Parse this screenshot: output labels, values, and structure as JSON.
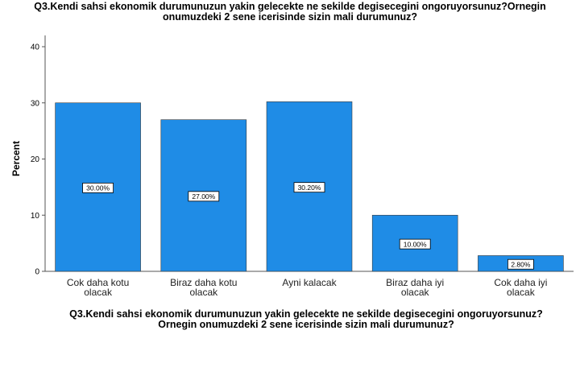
{
  "chart_data": {
    "type": "bar",
    "title_lines": [
      "Q3.Kendi sahsi ekonomik durumunuzun yakin gelecekte ne sekilde degisecegini ongoruyorsunuz?Ornegin",
      "onumuzdeki 2 sene icerisinde sizin mali durumunuz?"
    ],
    "xlabel_lines": [
      "Q3.Kendi sahsi ekonomik durumunuzun yakin gelecekte ne sekilde degisecegini ongoruyorsunuz?",
      "Ornegin onumuzdeki 2 sene icerisinde sizin mali durumunuz?"
    ],
    "ylabel": "Percent",
    "ylim": [
      0,
      40
    ],
    "yticks": [
      "0",
      "10",
      "20",
      "30",
      "40"
    ],
    "categories": [
      [
        "Cok daha kotu",
        "olacak"
      ],
      [
        "Biraz daha kotu",
        "olacak"
      ],
      [
        "Ayni kalacak"
      ],
      [
        "Biraz daha iyi",
        "olacak"
      ],
      [
        "Cok daha iyi",
        "olacak"
      ]
    ],
    "values": [
      30.0,
      27.0,
      30.2,
      10.0,
      2.8
    ],
    "data_labels": [
      "30.00%",
      "27.00%",
      "30.20%",
      "10.00%",
      "2.80%"
    ],
    "bar_color": "#1f8ce6",
    "grid": false
  }
}
